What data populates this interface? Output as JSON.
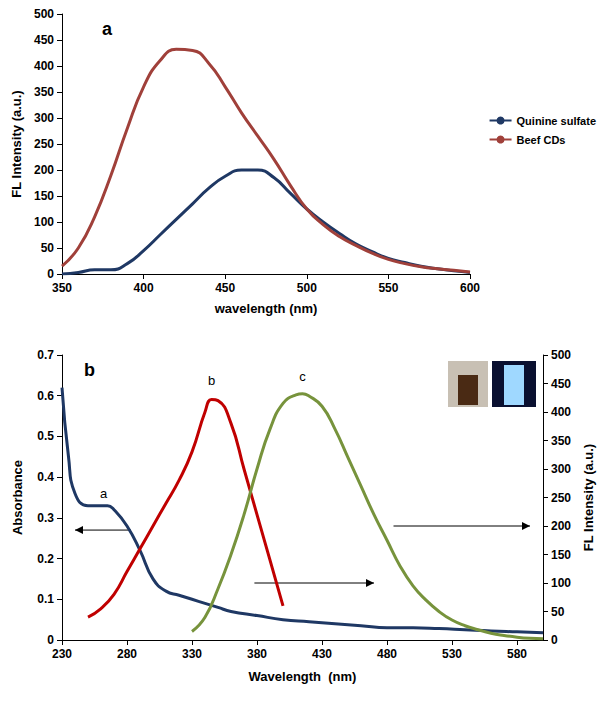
{
  "chart_data": [
    {
      "type": "line",
      "title": "a",
      "xlabel": "wavelength (nm)",
      "ylabel": "FL Intensity (a.u.)",
      "xlim": [
        350,
        600
      ],
      "xticks": [
        350,
        400,
        450,
        500,
        550,
        600
      ],
      "ylim": [
        0,
        500
      ],
      "yticks": [
        0,
        50,
        100,
        150,
        200,
        250,
        300,
        350,
        400,
        450,
        500
      ],
      "grid": false,
      "legend": "right",
      "x": [
        350,
        360,
        370,
        380,
        390,
        400,
        410,
        420,
        430,
        440,
        450,
        460,
        470,
        480,
        490,
        500,
        510,
        520,
        530,
        540,
        550,
        560,
        570,
        580,
        590,
        600
      ],
      "series": [
        {
          "name": "Quinine sulfate",
          "color": "#1f3864",
          "values": [
            0,
            3,
            8,
            8,
            20,
            45,
            75,
            105,
            135,
            165,
            188,
            200,
            200,
            185,
            155,
            125,
            100,
            78,
            58,
            43,
            30,
            22,
            15,
            10,
            6,
            3
          ]
        },
        {
          "name": "Beef CDs",
          "color": "#a0403a",
          "values": [
            15,
            50,
            110,
            190,
            280,
            360,
            410,
            432,
            430,
            405,
            360,
            310,
            265,
            220,
            170,
            125,
            95,
            72,
            55,
            40,
            28,
            20,
            14,
            10,
            7,
            4
          ]
        }
      ]
    },
    {
      "type": "line",
      "title": "b",
      "xlabel": "Wavelength  (nm)",
      "ylabel": "Absorbance",
      "y2label": "FL Intensity (a.u.)",
      "xlim": [
        230,
        600
      ],
      "xticks": [
        230,
        280,
        330,
        380,
        430,
        480,
        530,
        580
      ],
      "ylim": [
        0,
        0.7
      ],
      "yticks": [
        0,
        0.1,
        0.2,
        0.3,
        0.4,
        0.5,
        0.6,
        0.7
      ],
      "y2lim": [
        0,
        500
      ],
      "y2ticks": [
        0,
        50,
        100,
        150,
        200,
        250,
        300,
        350,
        400,
        450,
        500
      ],
      "grid": false,
      "series": [
        {
          "name": "a",
          "color": "#1f3864",
          "axis": "y",
          "x": [
            230,
            235,
            240,
            250,
            260,
            265,
            270,
            280,
            290,
            300,
            310,
            320,
            330,
            340,
            350,
            360,
            380,
            400,
            420,
            440,
            460,
            480,
            500,
            520,
            540,
            560,
            580,
            600
          ],
          "values": [
            0.62,
            0.45,
            0.36,
            0.33,
            0.33,
            0.33,
            0.32,
            0.28,
            0.22,
            0.15,
            0.12,
            0.11,
            0.1,
            0.09,
            0.08,
            0.07,
            0.06,
            0.05,
            0.045,
            0.04,
            0.035,
            0.03,
            0.03,
            0.028,
            0.025,
            0.022,
            0.02,
            0.018
          ]
        },
        {
          "name": "b",
          "color": "#c00000",
          "axis": "y2",
          "x": [
            250,
            260,
            270,
            280,
            290,
            300,
            310,
            320,
            330,
            340,
            345,
            350,
            360,
            370,
            380,
            390,
            400
          ],
          "values": [
            40,
            55,
            80,
            120,
            160,
            200,
            240,
            280,
            330,
            400,
            422,
            420,
            380,
            300,
            220,
            140,
            60
          ]
        },
        {
          "name": "c",
          "color": "#77933c",
          "axis": "y2",
          "x": [
            330,
            340,
            350,
            360,
            370,
            380,
            390,
            400,
            410,
            415,
            420,
            430,
            440,
            450,
            460,
            470,
            480,
            490,
            500,
            510,
            520,
            530,
            540,
            550,
            560,
            570,
            580,
            590,
            600
          ],
          "values": [
            15,
            40,
            90,
            150,
            220,
            300,
            370,
            415,
            430,
            432,
            428,
            410,
            370,
            320,
            270,
            220,
            175,
            130,
            95,
            70,
            50,
            35,
            25,
            18,
            12,
            8,
            5,
            3,
            2
          ]
        }
      ],
      "annotations": [
        {
          "text": "a",
          "x": 262,
          "y": 0.36,
          "axis": "y"
        },
        {
          "text": "b",
          "x": 345,
          "y": 455,
          "axis": "y2"
        },
        {
          "text": "c",
          "x": 415,
          "y": 462,
          "axis": "y2"
        }
      ]
    }
  ]
}
